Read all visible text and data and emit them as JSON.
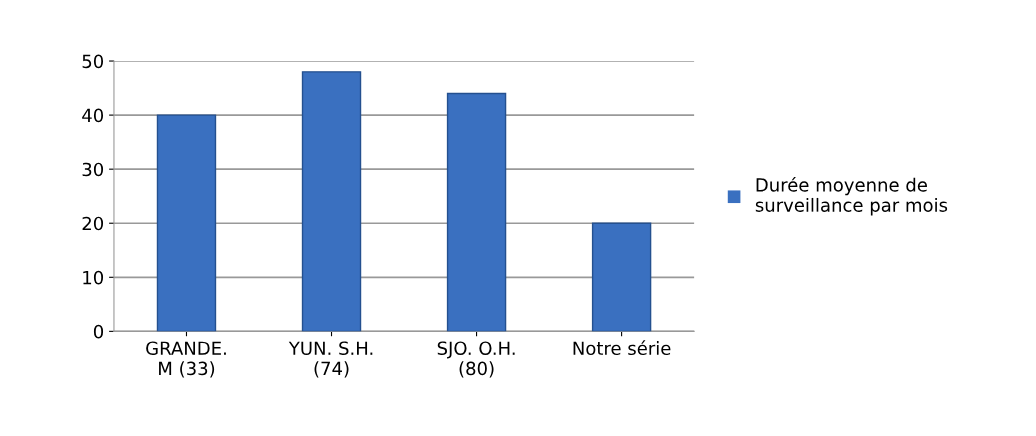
{
  "chart_data": {
    "type": "bar",
    "categories": [
      "GRANDE.\nM (33)",
      "YUN. S.H.\n(74)",
      "SJO. O.H.\n(80)",
      "Notre série"
    ],
    "series": [
      {
        "name": "Durée moyenne de\nsurveillance par mois",
        "color": "#3a70c0",
        "values": [
          40,
          48,
          44,
          20
        ]
      }
    ],
    "ylim": [
      0,
      50
    ],
    "yticks": [
      0,
      10,
      20,
      30,
      40,
      50
    ],
    "grid": "y",
    "legend": "right"
  }
}
